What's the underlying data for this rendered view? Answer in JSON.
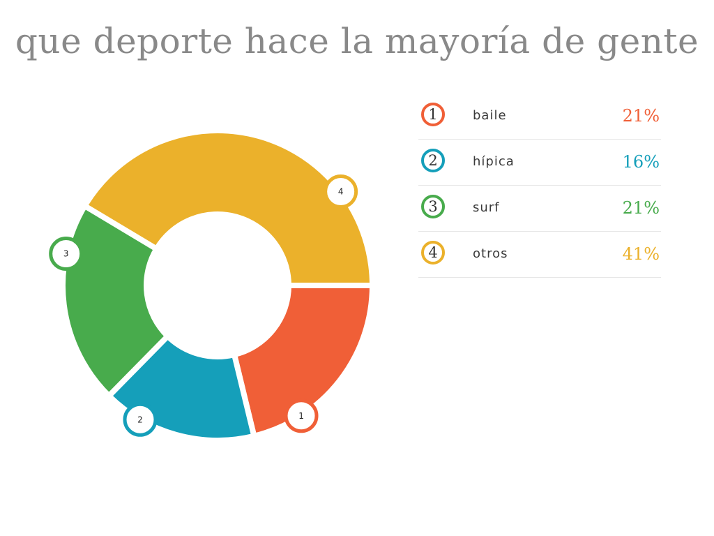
{
  "chart_data": {
    "type": "pie",
    "title": "que deporte hace la mayoría de gente",
    "categories": [
      "baile",
      "hípica",
      "surf",
      "otros"
    ],
    "values": [
      21,
      16,
      21,
      41
    ],
    "series": [
      {
        "number": "1",
        "label": "baile",
        "value": 21,
        "display": "21%",
        "color": "#F05F37"
      },
      {
        "number": "2",
        "label": "hípica",
        "value": 16,
        "display": "16%",
        "color": "#159FBA"
      },
      {
        "number": "3",
        "label": "surf",
        "value": 21,
        "display": "21%",
        "color": "#48AB4C"
      },
      {
        "number": "4",
        "label": "otros",
        "value": 41,
        "display": "41%",
        "color": "#EBB12B"
      }
    ],
    "legend": "right"
  }
}
